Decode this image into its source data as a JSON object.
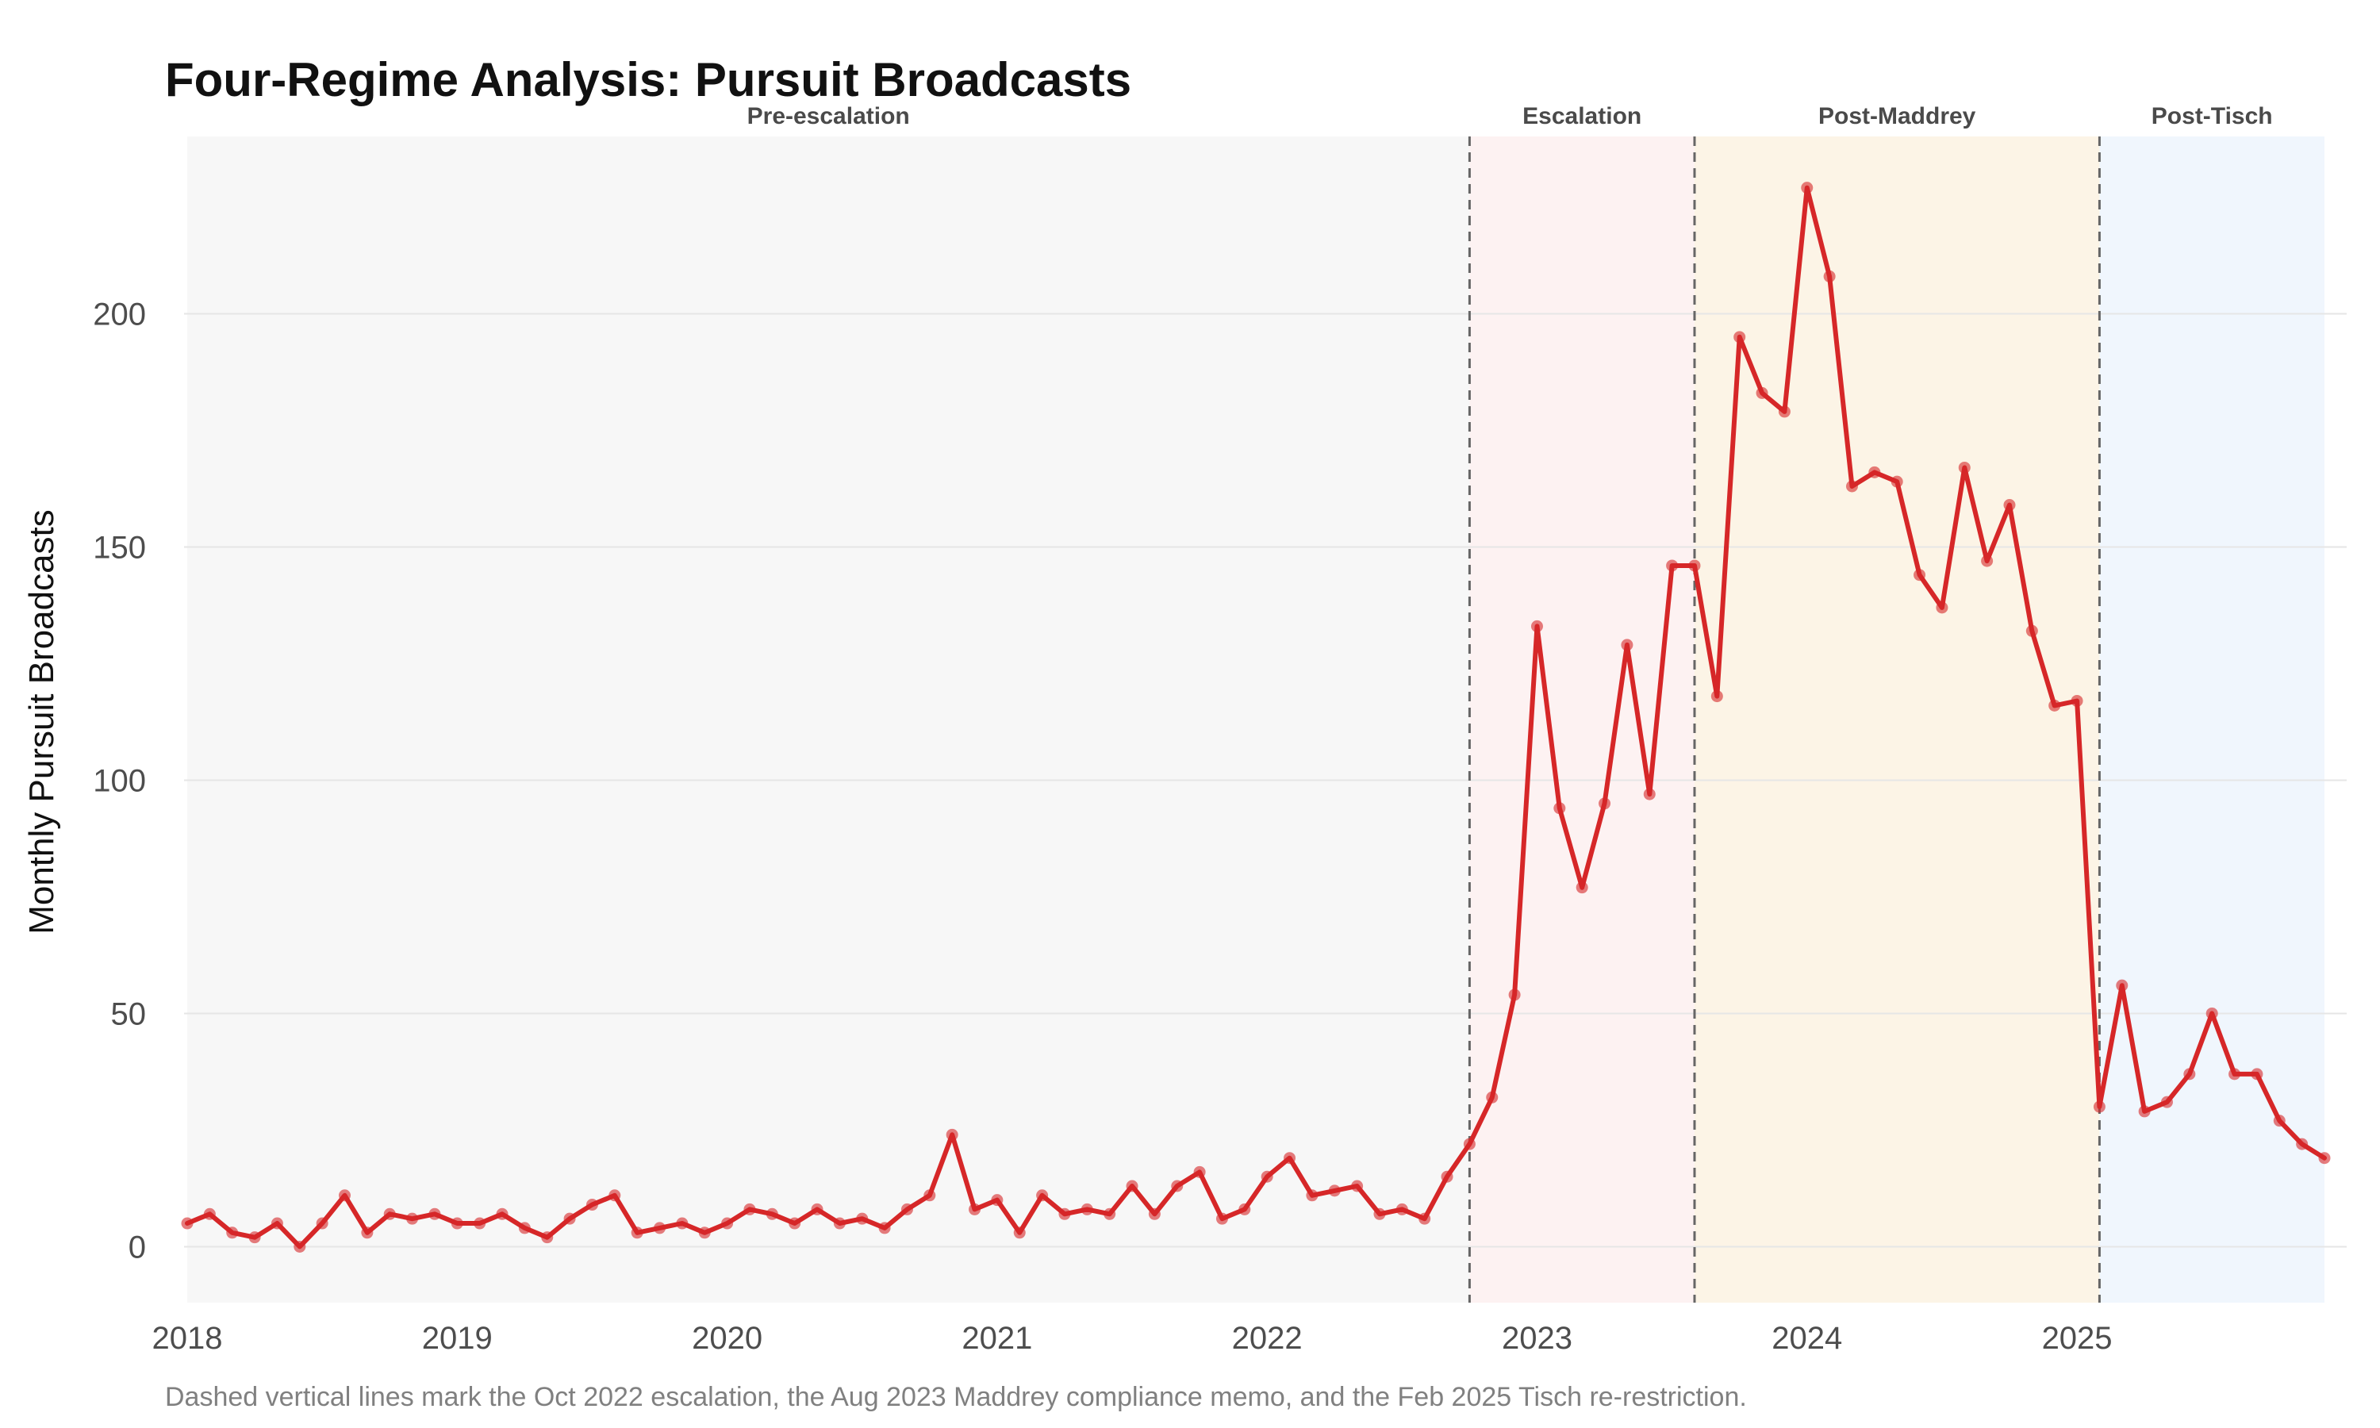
{
  "chart_data": {
    "type": "line",
    "title": "Four-Regime Analysis: Pursuit Broadcasts",
    "xlabel": "",
    "ylabel": "Monthly Pursuit Broadcasts",
    "caption": "Dashed vertical lines mark the Oct 2022 escalation, the Aug 2023 Maddrey compliance memo, and the Feb 2025 Tisch re-restriction.",
    "xlim": [
      "2018-01",
      "2025-12"
    ],
    "ylim": [
      -12,
      238
    ],
    "x_ticks": [
      "2018",
      "2019",
      "2020",
      "2021",
      "2022",
      "2023",
      "2024",
      "2025"
    ],
    "y_ticks": [
      0,
      50,
      100,
      150,
      200
    ],
    "grid": "horizontal",
    "regimes": [
      {
        "label": "Pre-escalation",
        "start": "2018-01",
        "end": "2022-10",
        "color": "#f7f7f7"
      },
      {
        "label": "Escalation",
        "start": "2022-10",
        "end": "2023-08",
        "color": "#fdf2f2"
      },
      {
        "label": "Post-Maddrey",
        "start": "2023-08",
        "end": "2025-02",
        "color": "#fcf4e6"
      },
      {
        "label": "Post-Tisch",
        "start": "2025-02",
        "end": "2025-12",
        "color": "#f0f6fd"
      }
    ],
    "breakpoints": [
      "2022-10",
      "2023-08",
      "2025-02"
    ],
    "series": [
      {
        "color": "#d62728",
        "x": [
          "2018-01",
          "2018-02",
          "2018-03",
          "2018-04",
          "2018-05",
          "2018-06",
          "2018-07",
          "2018-08",
          "2018-09",
          "2018-10",
          "2018-11",
          "2018-12",
          "2019-01",
          "2019-02",
          "2019-03",
          "2019-04",
          "2019-05",
          "2019-06",
          "2019-07",
          "2019-08",
          "2019-09",
          "2019-10",
          "2019-11",
          "2019-12",
          "2020-01",
          "2020-02",
          "2020-03",
          "2020-04",
          "2020-05",
          "2020-06",
          "2020-07",
          "2020-08",
          "2020-09",
          "2020-10",
          "2020-11",
          "2020-12",
          "2021-01",
          "2021-02",
          "2021-03",
          "2021-04",
          "2021-05",
          "2021-06",
          "2021-07",
          "2021-08",
          "2021-09",
          "2021-10",
          "2021-11",
          "2021-12",
          "2022-01",
          "2022-02",
          "2022-03",
          "2022-04",
          "2022-05",
          "2022-06",
          "2022-07",
          "2022-08",
          "2022-09",
          "2022-10",
          "2022-11",
          "2022-12",
          "2023-01",
          "2023-02",
          "2023-03",
          "2023-04",
          "2023-05",
          "2023-06",
          "2023-07",
          "2023-08",
          "2023-09",
          "2023-10",
          "2023-11",
          "2023-12",
          "2024-01",
          "2024-02",
          "2024-03",
          "2024-04",
          "2024-05",
          "2024-06",
          "2024-07",
          "2024-08",
          "2024-09",
          "2024-10",
          "2024-11",
          "2024-12",
          "2025-01",
          "2025-02",
          "2025-03",
          "2025-04",
          "2025-05",
          "2025-06",
          "2025-07",
          "2025-08",
          "2025-09",
          "2025-10",
          "2025-11",
          "2025-12"
        ],
        "values": [
          5,
          7,
          3,
          2,
          5,
          0,
          5,
          11,
          3,
          7,
          6,
          7,
          5,
          5,
          7,
          4,
          2,
          6,
          9,
          11,
          3,
          4,
          5,
          3,
          5,
          8,
          7,
          5,
          8,
          5,
          6,
          4,
          8,
          11,
          24,
          8,
          10,
          3,
          11,
          7,
          8,
          7,
          13,
          7,
          13,
          16,
          6,
          8,
          15,
          19,
          11,
          12,
          13,
          7,
          8,
          6,
          15,
          22,
          32,
          54,
          133,
          94,
          77,
          95,
          129,
          97,
          146,
          146,
          118,
          195,
          183,
          179,
          227,
          208,
          163,
          166,
          164,
          144,
          137,
          167,
          147,
          159,
          132,
          116,
          117,
          30,
          56,
          29,
          31,
          37,
          50,
          37,
          37,
          27,
          22,
          19
        ]
      }
    ]
  }
}
